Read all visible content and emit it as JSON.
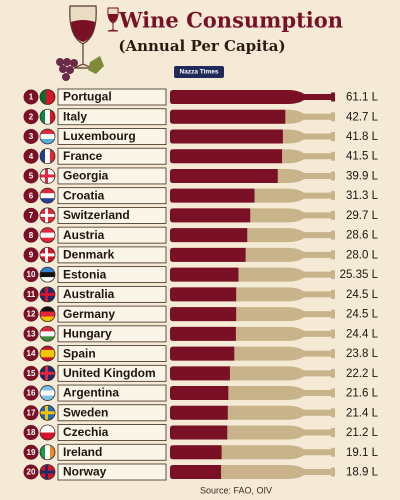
{
  "chart_data": {
    "type": "bar",
    "orientation": "horizontal",
    "title": "Wine Consumption",
    "subtitle": "(Annual Per Capita)",
    "badge": "Nazza Times",
    "source": "Source: FAO, OIV",
    "ranks": [
      1,
      2,
      3,
      4,
      5,
      6,
      7,
      8,
      9,
      10,
      11,
      12,
      13,
      14,
      15,
      16,
      17,
      18,
      19,
      20
    ],
    "categories": [
      "Portugal",
      "Italy",
      "Luxembourg",
      "France",
      "Georgia",
      "Croatia",
      "Switzerland",
      "Austria",
      "Denmark",
      "Estonia",
      "Australia",
      "Germany",
      "Hungary",
      "Spain",
      "United Kingdom",
      "Argentina",
      "Sweden",
      "Czechia",
      "Ireland",
      "Norway"
    ],
    "values": [
      61.1,
      42.7,
      41.8,
      41.5,
      39.9,
      31.3,
      29.7,
      28.6,
      28.0,
      25.35,
      24.5,
      24.5,
      24.4,
      23.8,
      22.2,
      21.6,
      21.4,
      21.2,
      19.1,
      18.9
    ],
    "value_labels": [
      "61.1 L",
      "42.7 L",
      "41.8 L",
      "41.5 L",
      "39.9 L",
      "31.3 L",
      "29.7 L",
      "28.6 L",
      "28.0 L",
      "25.35 L",
      "24.5 L",
      "24.5 L",
      "24.4 L",
      "23.8 L",
      "22.2 L",
      "21.6 L",
      "21.4 L",
      "21.2 L",
      "19.1 L",
      "18.9 L"
    ],
    "color": "#7a1026",
    "track_color": "#c8b38a"
  }
}
